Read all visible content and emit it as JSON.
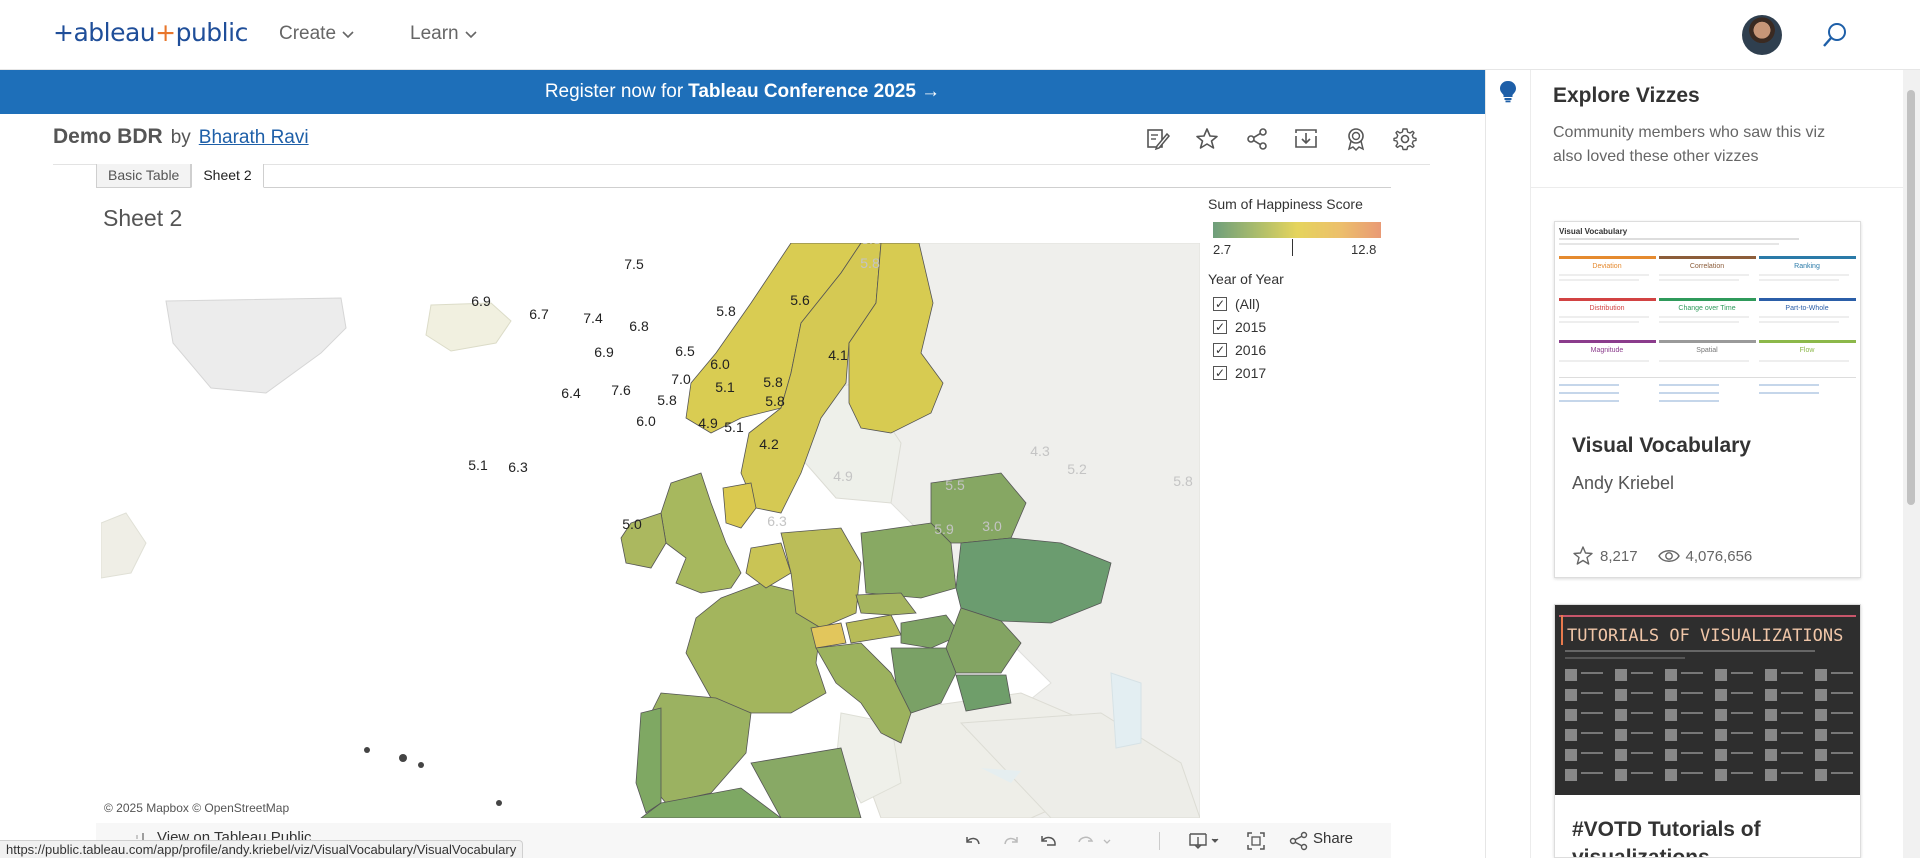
{
  "nav": {
    "logo": "+ableau+public",
    "logo_left": "+ableau",
    "logo_plus": "+",
    "logo_right": "public",
    "create": "Create",
    "learn": "Learn"
  },
  "banner": {
    "prefix": "Register now for",
    "strong": "Tableau Conference 2025 →"
  },
  "viz": {
    "title": "Demo BDR",
    "by": "by",
    "author": "Bharath Ravi"
  },
  "tabs": [
    {
      "label": "Basic Table"
    },
    {
      "label": "Sheet 2"
    }
  ],
  "sheet_title": "Sheet 2",
  "legend": {
    "title": "Sum of Happiness Score",
    "min": "2.7",
    "max": "12.8"
  },
  "filter": {
    "title": "Year of Year",
    "options": [
      {
        "label": "(All)",
        "checked": true
      },
      {
        "label": "2015",
        "checked": true
      },
      {
        "label": "2016",
        "checked": true
      },
      {
        "label": "2017",
        "checked": true
      }
    ]
  },
  "map": {
    "credit": "© 2025 Mapbox  © OpenStreetMap",
    "labels": [
      {
        "text": "7.4"
      },
      {
        "text": "7.5"
      },
      {
        "text": "7.4"
      },
      {
        "text": "7.5"
      },
      {
        "text": "6.9"
      },
      {
        "text": "6.7"
      },
      {
        "text": "7.4"
      },
      {
        "text": "6.8"
      },
      {
        "text": "5.8"
      },
      {
        "text": "5.6"
      },
      {
        "text": "6.9"
      },
      {
        "text": "6.5"
      },
      {
        "text": "6.0"
      },
      {
        "text": "4.1"
      },
      {
        "text": "7.0"
      },
      {
        "text": "5.1"
      },
      {
        "text": "6.4"
      },
      {
        "text": "7.6"
      },
      {
        "text": "5.8"
      },
      {
        "text": "5.8"
      },
      {
        "text": "5.8"
      },
      {
        "text": "6.0"
      },
      {
        "text": "4.9"
      },
      {
        "text": "5.1"
      },
      {
        "text": "4.2"
      },
      {
        "text": "5.1"
      },
      {
        "text": "6.3"
      },
      {
        "text": "5.0"
      }
    ],
    "faded_labels": [
      {
        "text": "7.5"
      },
      {
        "text": "5.5"
      },
      {
        "text": "5.8"
      },
      {
        "text": "5.8"
      },
      {
        "text": "4.3"
      },
      {
        "text": "5.2"
      },
      {
        "text": "5.8"
      },
      {
        "text": "5.5"
      },
      {
        "text": "4.9"
      },
      {
        "text": "6.3"
      },
      {
        "text": "5.9"
      },
      {
        "text": "3.0"
      }
    ]
  },
  "bottom": {
    "view_on": "View on Tableau Public",
    "share": "Share"
  },
  "status_url": "https://public.tableau.com/app/profile/andy.kriebel/viz/VisualVocabulary/VisualVocabulary",
  "explore": {
    "title": "Explore Vizzes",
    "subtitle": "Community members who saw this viz also loved these other vizzes",
    "cards": [
      {
        "name": "Visual Vocabulary",
        "author": "Andy Kriebel",
        "favorites": "8,217",
        "views": "4,076,656"
      },
      {
        "name": "#VOTD Tutorials of visualizations"
      }
    ],
    "thumb1": {
      "title": "Visual Vocabulary",
      "sections": [
        "Deviation",
        "Correlation",
        "Ranking",
        "Distribution",
        "Change over Time",
        "Part-to-Whole",
        "Magnitude",
        "Spatial",
        "Flow"
      ]
    },
    "thumb2": {
      "title": "TUTORIALS OF VISUALIZATIONS"
    }
  },
  "colors": {
    "brand_blue": "#1e6fb9",
    "link_blue": "#1e5fa8",
    "legend_low": "#6e9e7b",
    "legend_mid": "#e5d45d",
    "legend_high": "#e99a75"
  }
}
